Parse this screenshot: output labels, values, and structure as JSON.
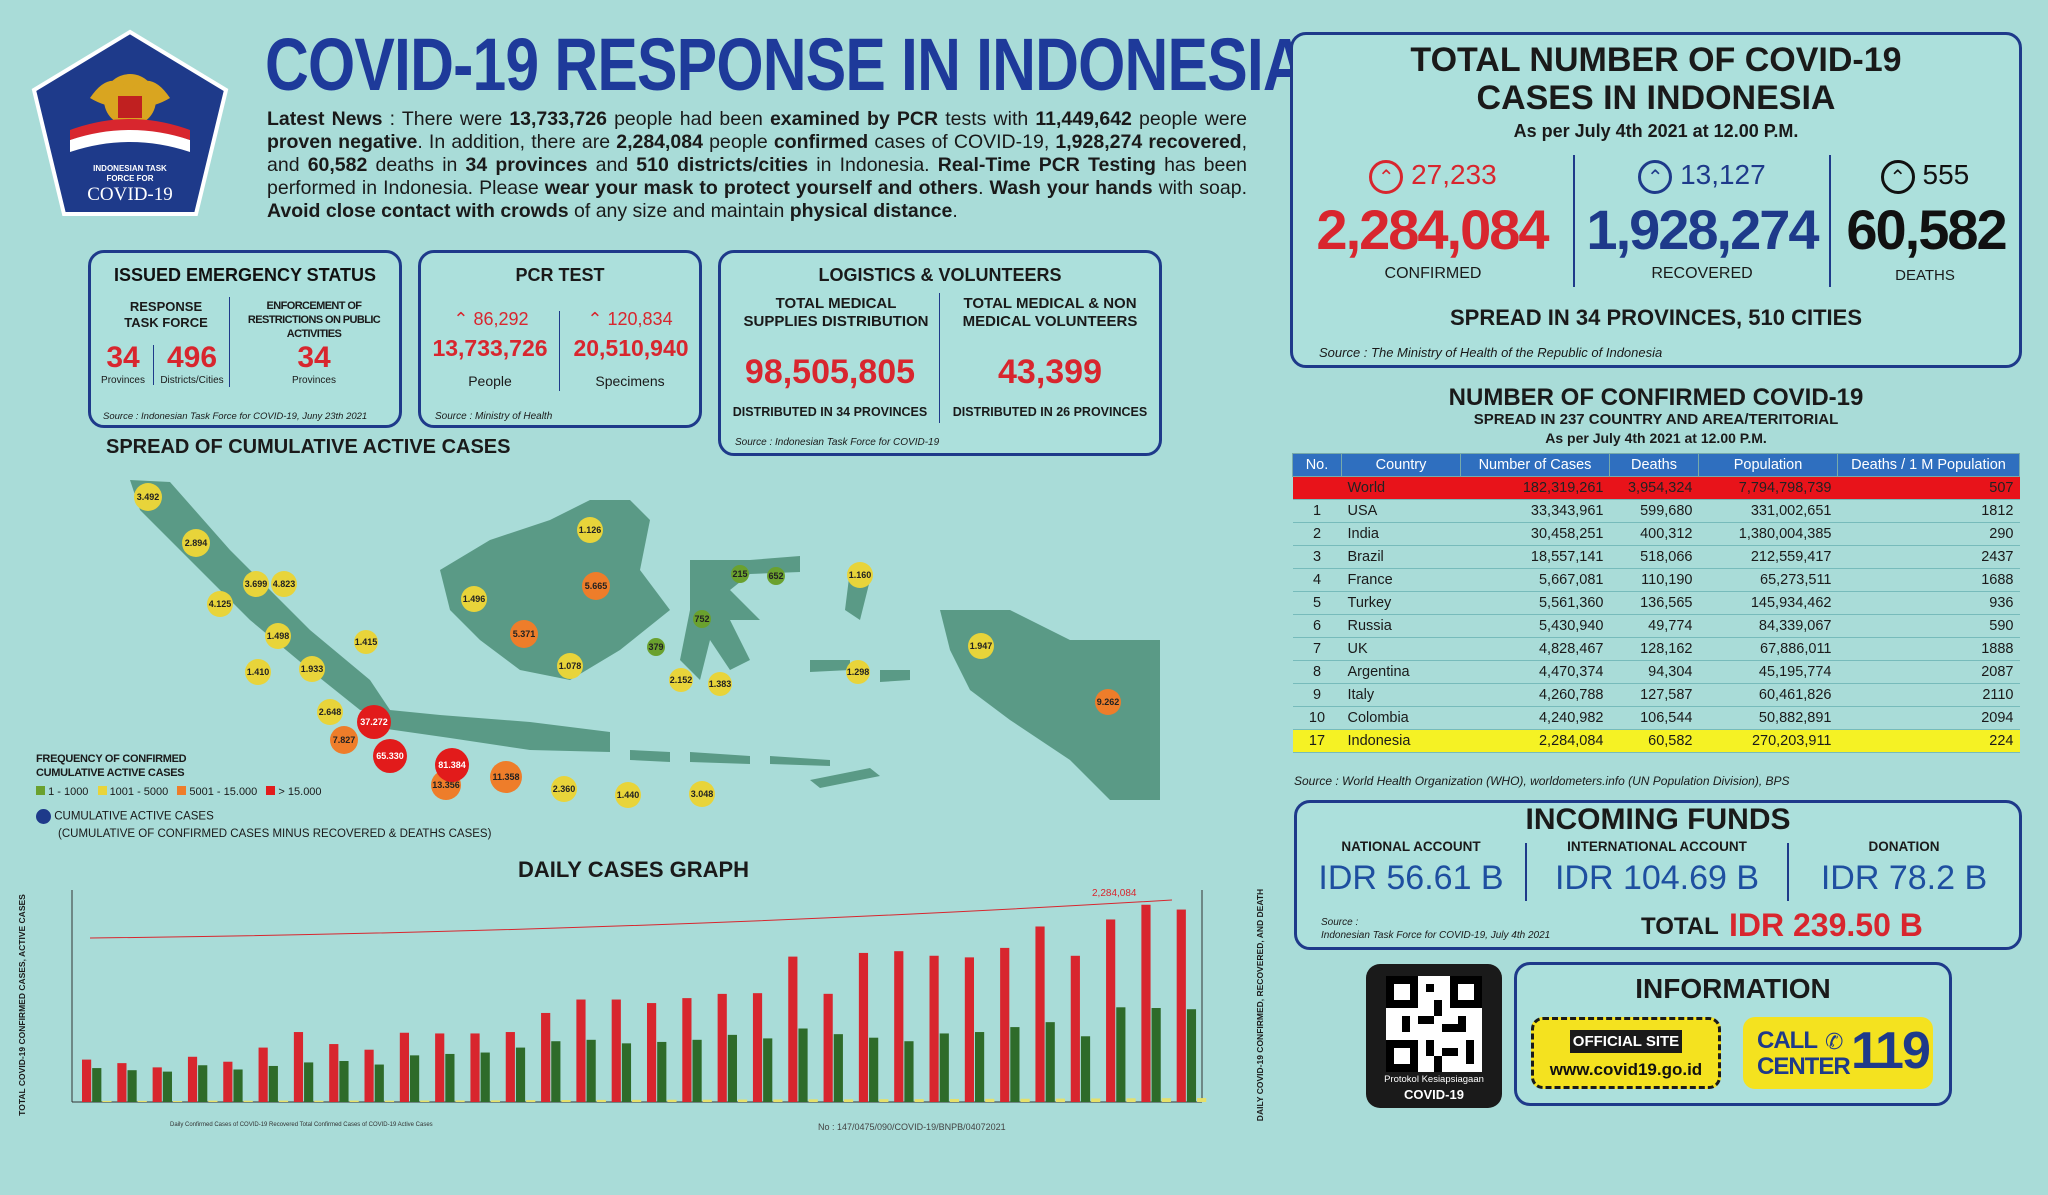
{
  "header": {
    "logo_text_1": "INDONESIAN TASK",
    "logo_text_2": "FORCE FOR",
    "logo_text_3": "COVID-19",
    "title": "COVID-19 RESPONSE IN INDONESIA"
  },
  "news": {
    "p1": "Latest News",
    "p2": " : There were ",
    "p3": "13,733,726",
    "p4": " people had been ",
    "p5": "examined by PCR",
    "p6": " tests with ",
    "p7": "11,449,642",
    "p8": " people were ",
    "p9": "proven negative",
    "p10": ". In addition, there are ",
    "p11": "2,284,084",
    "p12": " people ",
    "p13": "confirmed",
    "p14": " cases of COVID-19, ",
    "p15": "1,928,274 recovered",
    "p16": ", and ",
    "p17": "60,582",
    "p18": " deaths",
    "p19": " in ",
    "p20": "34 provinces",
    "p21": " and ",
    "p22": "510 districts/cities",
    "p23": " in Indonesia. ",
    "p24": "Real-Time PCR Testing",
    "p25": " has been performed in Indonesia. Please ",
    "p26": "wear your mask to protect yourself and others",
    "p27": ". ",
    "p28": "Wash your hands",
    "p29": " with soap. ",
    "p30": "Avoid close contact with crowds",
    "p31": " of any size and maintain ",
    "p32": "physical distance",
    "p33": "."
  },
  "emergency": {
    "title": "ISSUED EMERGENCY STATUS",
    "col1_label": "RESPONSE TASK FORCE",
    "col2_label": "ENFORCEMENT OF RESTRICTIONS ON PUBLIC ACTIVITIES",
    "provinces_value": "34",
    "provinces_label": "Provinces",
    "districts_value": "496",
    "districts_label": "Districts/Cities",
    "enf_value": "34",
    "enf_label": "Provinces",
    "source": "Source : Indonesian Task Force for COVID-19, Juny 23th 2021"
  },
  "pcr": {
    "title": "PCR TEST",
    "people_delta": "86,292",
    "specimens_delta": "120,834",
    "people_value": "13,733,726",
    "specimens_value": "20,510,940",
    "people_label": "People",
    "specimens_label": "Specimens",
    "source": "Source : Ministry of Health"
  },
  "logistics": {
    "title": "LOGISTICS & VOLUNTEERS",
    "col1_label": "TOTAL MEDICAL SUPPLIES DISTRIBUTION",
    "col2_label": "TOTAL MEDICAL & NON MEDICAL VOLUNTEERS",
    "col1_value": "98,505,805",
    "col2_value": "43,399",
    "col1_note": "DISTRIBUTED IN 34 PROVINCES",
    "col2_note": "DISTRIBUTED IN 26 PROVINCES",
    "source": "Source : Indonesian Task Force for COVID-19"
  },
  "totals": {
    "title_line1": "TOTAL NUMBER OF COVID-19",
    "title_line2": "CASES IN INDONESIA",
    "as_of": "As per July 4th 2021 at 12.00 P.M.",
    "confirmed_delta": "27,233",
    "recovered_delta": "13,127",
    "deaths_delta": "555",
    "confirmed": "2,284,084",
    "recovered": "1,928,274",
    "deaths": "60,582",
    "confirmed_label": "CONFIRMED",
    "recovered_label": "RECOVERED",
    "deaths_label": "DEATHS",
    "spread": "SPREAD IN 34 PROVINCES, 510 CITIES",
    "source": "Source : The Ministry of Health of the Republic of Indonesia"
  },
  "world": {
    "title": "NUMBER OF CONFIRMED COVID-19",
    "subtitle": "SPREAD IN 237 COUNTRY AND AREA/TERITORIAL",
    "as_of": "As per July 4th 2021 at 12.00 P.M.",
    "headers": [
      "No.",
      "Country",
      "Number of Cases",
      "Deaths",
      "Population",
      "Deaths / 1 M Population"
    ],
    "rows": [
      [
        "",
        "World",
        "182,319,261",
        "3,954,324",
        "7,794,798,739",
        "507"
      ],
      [
        "1",
        "USA",
        "33,343,961",
        "599,680",
        "331,002,651",
        "1812"
      ],
      [
        "2",
        "India",
        "30,458,251",
        "400,312",
        "1,380,004,385",
        "290"
      ],
      [
        "3",
        "Brazil",
        "18,557,141",
        "518,066",
        "212,559,417",
        "2437"
      ],
      [
        "4",
        "France",
        "5,667,081",
        "110,190",
        "65,273,511",
        "1688"
      ],
      [
        "5",
        "Turkey",
        "5,561,360",
        "136,565",
        "145,934,462",
        "936"
      ],
      [
        "6",
        "Russia",
        "5,430,940",
        "49,774",
        "84,339,067",
        "590"
      ],
      [
        "7",
        "UK",
        "4,828,467",
        "128,162",
        "67,886,011",
        "1888"
      ],
      [
        "8",
        "Argentina",
        "4,470,374",
        "94,304",
        "45,195,774",
        "2087"
      ],
      [
        "9",
        "Italy",
        "4,260,788",
        "127,587",
        "60,461,826",
        "2110"
      ],
      [
        "10",
        "Colombia",
        "4,240,982",
        "106,544",
        "50,882,891",
        "2094"
      ],
      [
        "17",
        "Indonesia",
        "2,284,084",
        "60,582",
        "270,203,911",
        "224"
      ]
    ],
    "source": "Source : World Health Organization (WHO), worldometers.info (UN Population Division), BPS"
  },
  "funds": {
    "title": "INCOMING FUNDS",
    "national_label": "NATIONAL ACCOUNT",
    "international_label": "INTERNATIONAL ACCOUNT",
    "donation_label": "DONATION",
    "national": "IDR 56.61 B",
    "international": "IDR 104.69 B",
    "donation": "IDR 78.2 B",
    "source_1": "Source :",
    "source_2": "Indonesian Task Force for COVID-19, July 4th 2021",
    "total_label": "TOTAL",
    "total": "IDR 239.50 B"
  },
  "info": {
    "qr_caption_1": "Protokol Kesiapsiagaan",
    "qr_caption_2": "COVID-19",
    "title": "INFORMATION",
    "official_site_label": "OFFICIAL SITE",
    "official_site": "www.covid19.go.id",
    "call_center_1": "CALL",
    "call_center_2": "CENTER",
    "call_number": "119"
  },
  "map": {
    "title": "SPREAD OF CUMULATIVE ACTIVE CASES",
    "legend_title_1": "FREQUENCY OF CONFIRMED",
    "legend_title_2": "CUMULATIVE ACTIVE CASES",
    "legend_1": "1 - 1000",
    "legend_2": "1001 - 5000",
    "legend_3": "5001 - 15.000",
    "legend_4": "> 15.000",
    "legend_dot": "CUMULATIVE ACTIVE CASES",
    "legend_note": "(CUMULATIVE OF CONFIRMED CASES MINUS RECOVERED & DEATHS CASES)",
    "colors": {
      "green": "#6aa12e",
      "yellow": "#e8d43a",
      "orange": "#ee7d2a",
      "red": "#e21b1b",
      "navy": "#1e3a8a"
    },
    "points": [
      {
        "label": "3.492",
        "cat": "yellow"
      },
      {
        "label": "2.894",
        "cat": "yellow"
      },
      {
        "label": "3.699",
        "cat": "yellow"
      },
      {
        "label": "4.823",
        "cat": "yellow"
      },
      {
        "label": "4.125",
        "cat": "yellow"
      },
      {
        "label": "1.498",
        "cat": "yellow"
      },
      {
        "label": "1.410",
        "cat": "yellow"
      },
      {
        "label": "1.933",
        "cat": "yellow"
      },
      {
        "label": "1.415",
        "cat": "yellow"
      },
      {
        "label": "2.648",
        "cat": "yellow"
      },
      {
        "label": "7.827",
        "cat": "orange"
      },
      {
        "label": "37.272",
        "cat": "red"
      },
      {
        "label": "65.330",
        "cat": "red"
      },
      {
        "label": "13.356",
        "cat": "orange"
      },
      {
        "label": "81.384",
        "cat": "red"
      },
      {
        "label": "11.358",
        "cat": "orange"
      },
      {
        "label": "2.360",
        "cat": "yellow"
      },
      {
        "label": "1.440",
        "cat": "yellow"
      },
      {
        "label": "3.048",
        "cat": "yellow"
      },
      {
        "label": "1.496",
        "cat": "yellow"
      },
      {
        "label": "5.371",
        "cat": "orange"
      },
      {
        "label": "1.126",
        "cat": "yellow"
      },
      {
        "label": "5.665",
        "cat": "orange"
      },
      {
        "label": "1.078",
        "cat": "yellow"
      },
      {
        "label": "215",
        "cat": "green"
      },
      {
        "label": "652",
        "cat": "green"
      },
      {
        "label": "752",
        "cat": "green"
      },
      {
        "label": "379",
        "cat": "green"
      },
      {
        "label": "2.152",
        "cat": "yellow"
      },
      {
        "label": "1.383",
        "cat": "yellow"
      },
      {
        "label": "1.160",
        "cat": "yellow"
      },
      {
        "label": "1.298",
        "cat": "yellow"
      },
      {
        "label": "1.947",
        "cat": "yellow"
      },
      {
        "label": "9.262",
        "cat": "orange"
      }
    ]
  },
  "chart_data": {
    "type": "bar",
    "title": "DAILY CASES GRAPH",
    "ylabel_left": "TOTAL COVID-19 CONFIRMED CASES, ACTIVE CASES",
    "ylabel_right": "DAILY COVID-19 CONFIRMED, RECOVERED, AND DEATH",
    "total_label": "2,284,084",
    "series": [
      {
        "name": "Daily Confirmed Cases of COVID-19",
        "color": "#d8262e",
        "values": [
          6000,
          5500,
          4900,
          6400,
          5700,
          7700,
          9900,
          8200,
          7400,
          9800,
          9700,
          9700,
          9900,
          12600,
          14500,
          14500,
          14000,
          14700,
          15300,
          15400,
          20574,
          15308,
          21095,
          21342,
          20694,
          20467,
          21807,
          24836,
          20690,
          25830,
          27913,
          27233
        ]
      },
      {
        "name": "Recovered",
        "color": "#2e6b2a",
        "values": [
          4800,
          4500,
          4300,
          5200,
          4600,
          5100,
          5600,
          5800,
          5300,
          6600,
          6800,
          7000,
          7700,
          8600,
          8800,
          8300,
          8500,
          8800,
          9500,
          9000,
          10400,
          9600,
          9100,
          8600,
          9700,
          9900,
          10600,
          11300,
          9300,
          13400,
          13300,
          13127
        ]
      },
      {
        "name": "Deaths",
        "color": "#e6e06a",
        "values": [
          150,
          160,
          140,
          190,
          180,
          200,
          180,
          200,
          190,
          210,
          220,
          230,
          260,
          280,
          300,
          310,
          320,
          330,
          350,
          360,
          380,
          380,
          400,
          410,
          430,
          450,
          460,
          480,
          500,
          520,
          540,
          555
        ]
      }
    ],
    "legend_note": "Daily Confirmed Cases of COVID-19  Recovered  Total Confirmed Cases of COVID-19  Active Cases"
  },
  "footer": {
    "doc_number": "No : 147/0475/090/COVID-19/BNPB/04072021"
  }
}
